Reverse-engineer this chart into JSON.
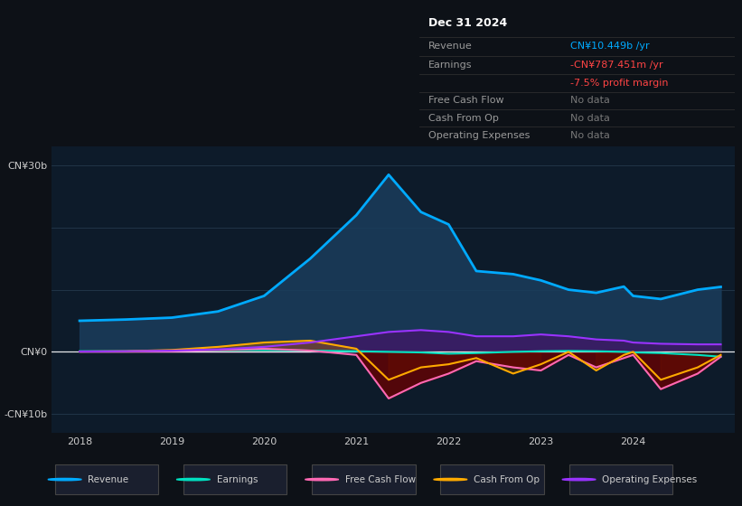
{
  "bg_color": "#0d1117",
  "chart_bg": "#0d1b2a",
  "revenue_color": "#00aaff",
  "earnings_color": "#00e0c0",
  "fcf_color": "#ff69b4",
  "cfo_color": "#ffaa00",
  "opex_color": "#9933ff",
  "revenue_fill": "#1a3d5c",
  "opex_fill": "#3d1a66",
  "fcf_fill_neg": "#660000",
  "cfo_fill_pos": "#664400",
  "legend_items": [
    {
      "label": "Revenue",
      "color": "#00aaff"
    },
    {
      "label": "Earnings",
      "color": "#00e0c0"
    },
    {
      "label": "Free Cash Flow",
      "color": "#ff69b4"
    },
    {
      "label": "Cash From Op",
      "color": "#ffaa00"
    },
    {
      "label": "Operating Expenses",
      "color": "#9933ff"
    }
  ],
  "x": [
    2018.0,
    2018.5,
    2019.0,
    2019.5,
    2020.0,
    2020.5,
    2021.0,
    2021.35,
    2021.7,
    2022.0,
    2022.3,
    2022.7,
    2023.0,
    2023.3,
    2023.6,
    2023.9,
    2024.0,
    2024.3,
    2024.7,
    2024.95
  ],
  "revenue": [
    5.0,
    5.2,
    5.5,
    6.5,
    9.0,
    15.0,
    22.0,
    28.5,
    22.5,
    20.5,
    13.0,
    12.5,
    11.5,
    10.0,
    9.5,
    10.5,
    9.0,
    8.5,
    10.0,
    10.449
  ],
  "earnings": [
    0.1,
    0.1,
    0.2,
    0.3,
    0.3,
    0.2,
    0.1,
    0.0,
    -0.1,
    -0.3,
    -0.2,
    0.0,
    0.1,
    0.15,
    0.1,
    0.0,
    -0.1,
    -0.2,
    -0.5,
    -0.787
  ],
  "fcf": [
    0.05,
    0.05,
    0.1,
    0.3,
    0.5,
    0.2,
    -0.5,
    -7.5,
    -5.0,
    -3.5,
    -1.5,
    -2.5,
    -3.0,
    -0.5,
    -2.5,
    -1.0,
    -0.5,
    -6.0,
    -3.5,
    -0.787
  ],
  "cfo": [
    0.05,
    0.1,
    0.3,
    0.8,
    1.5,
    1.8,
    0.5,
    -4.5,
    -2.5,
    -2.0,
    -1.0,
    -3.5,
    -2.0,
    0.0,
    -3.0,
    -0.5,
    0.0,
    -4.5,
    -2.5,
    -0.5
  ],
  "opex": [
    0.05,
    0.1,
    0.2,
    0.4,
    0.8,
    1.5,
    2.5,
    3.2,
    3.5,
    3.2,
    2.5,
    2.5,
    2.8,
    2.5,
    2.0,
    1.8,
    1.5,
    1.3,
    1.2,
    1.2
  ],
  "yticks_vals": [
    -10,
    0,
    30
  ],
  "yticks_labels": [
    "-CN¥10b",
    "CN¥0",
    "CN¥30b"
  ],
  "xticks": [
    2018,
    2019,
    2020,
    2021,
    2022,
    2023,
    2024
  ],
  "ylim": [
    -13,
    33
  ],
  "xlim": [
    2017.7,
    2025.1
  ]
}
